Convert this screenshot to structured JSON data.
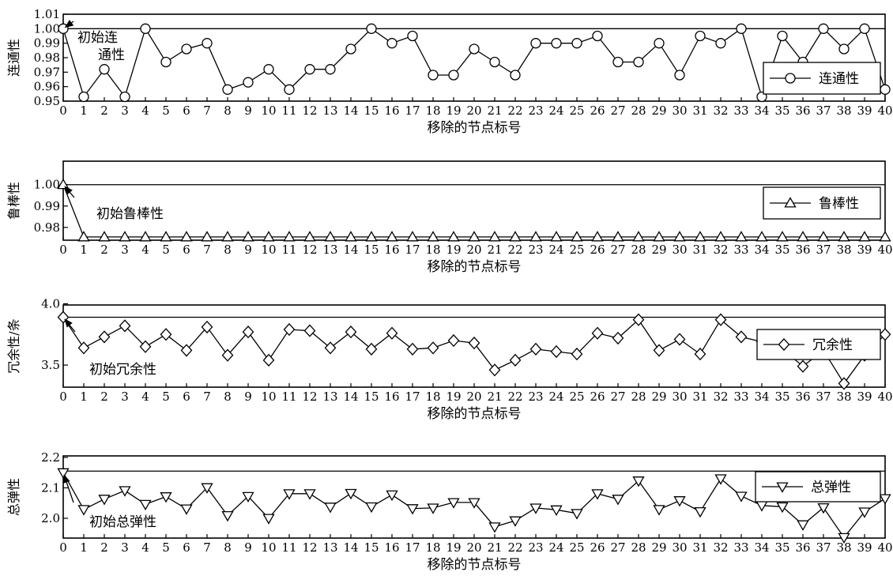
{
  "chart_data": [
    {
      "type": "line",
      "marker": "circle",
      "ylabel": "连通性",
      "xlabel": "移除的节点标号",
      "ylim": [
        0.95,
        1.01
      ],
      "yticks": [
        "0.95",
        "0.96",
        "0.97",
        "0.98",
        "0.99",
        "1.00",
        "1.01"
      ],
      "ytick_values": [
        0.95,
        0.96,
        0.97,
        0.98,
        0.99,
        1.0,
        1.01
      ],
      "reference_line": 1.0,
      "x": [
        0,
        1,
        2,
        3,
        4,
        5,
        6,
        7,
        8,
        9,
        10,
        11,
        12,
        13,
        14,
        15,
        16,
        17,
        18,
        19,
        20,
        21,
        22,
        23,
        24,
        25,
        26,
        27,
        28,
        29,
        30,
        31,
        32,
        33,
        34,
        35,
        36,
        37,
        38,
        39,
        40
      ],
      "xtick_labels": [
        "0",
        "1",
        "2",
        "3",
        "4",
        "5",
        "6",
        "7",
        "8",
        "9",
        "10",
        "11",
        "12",
        "13",
        "14",
        "15",
        "16",
        "17",
        "18",
        "19",
        "20",
        "21",
        "22",
        "23",
        "24",
        "25",
        "26",
        "27",
        "28",
        "29",
        "30",
        "31",
        "32",
        "33",
        "34",
        "35",
        "36",
        "37",
        "38",
        "39",
        "40"
      ],
      "series": [
        {
          "name": "连通性",
          "values": [
            1.0,
            0.953,
            0.972,
            0.953,
            1.0,
            0.977,
            0.986,
            0.99,
            0.958,
            0.963,
            0.972,
            0.958,
            0.972,
            0.972,
            0.986,
            1.0,
            0.99,
            0.995,
            0.968,
            0.968,
            0.986,
            0.977,
            0.968,
            0.99,
            0.99,
            0.99,
            0.995,
            0.977,
            0.977,
            0.99,
            0.968,
            0.995,
            0.99,
            1.0,
            0.953,
            0.995,
            0.977,
            1.0,
            0.986,
            1.0,
            0.958
          ]
        }
      ],
      "annotation": {
        "lines": [
          "初始连",
          "通性"
        ],
        "x": 0,
        "y": 1.0
      },
      "legend": "right"
    },
    {
      "type": "line",
      "marker": "triangle-up",
      "ylabel": "鲁棒性",
      "xlabel": "移除的节点标号",
      "ylim": [
        0.974,
        1.011
      ],
      "yticks": [
        "0.98",
        "0.99",
        "1.00"
      ],
      "ytick_values": [
        0.98,
        0.99,
        1.0
      ],
      "reference_line": 1.0,
      "x": [
        0,
        1,
        2,
        3,
        4,
        5,
        6,
        7,
        8,
        9,
        10,
        11,
        12,
        13,
        14,
        15,
        16,
        17,
        18,
        19,
        20,
        21,
        22,
        23,
        24,
        25,
        26,
        27,
        28,
        29,
        30,
        31,
        32,
        33,
        34,
        35,
        36,
        37,
        38,
        39,
        40
      ],
      "xtick_labels": [
        "0",
        "1",
        "2",
        "3",
        "4",
        "5",
        "6",
        "7",
        "8",
        "9",
        "10",
        "11",
        "12",
        "13",
        "14",
        "15",
        "16",
        "17",
        "18",
        "19",
        "20",
        "21",
        "22",
        "23",
        "24",
        "25",
        "26",
        "27",
        "28",
        "29",
        "30",
        "31",
        "32",
        "33",
        "34",
        "35",
        "36",
        "37",
        "38",
        "39",
        "40"
      ],
      "series": [
        {
          "name": "鲁棒性",
          "values": [
            1.0,
            0.9755,
            0.9755,
            0.9755,
            0.9755,
            0.9755,
            0.9755,
            0.9755,
            0.9755,
            0.9755,
            0.9755,
            0.9755,
            0.9755,
            0.9755,
            0.9755,
            0.9755,
            0.9755,
            0.9755,
            0.9755,
            0.9755,
            0.9755,
            0.9755,
            0.9755,
            0.9755,
            0.9755,
            0.9755,
            0.9755,
            0.9755,
            0.9755,
            0.9755,
            0.9755,
            0.9755,
            0.9755,
            0.9755,
            0.9755,
            0.9755,
            0.9755,
            0.9755,
            0.9755,
            0.9755,
            0.9755
          ]
        }
      ],
      "annotation": {
        "lines": [
          "初始鲁棒性"
        ],
        "x": 0,
        "y": 1.0
      },
      "legend": "right"
    },
    {
      "type": "line",
      "marker": "diamond",
      "ylabel": "冗余性/条",
      "xlabel": "移除的节点标号",
      "ylim": [
        3.32,
        3.99
      ],
      "yticks": [
        "3.5",
        "4.0"
      ],
      "ytick_values": [
        3.5,
        4.0
      ],
      "reference_line": 3.89,
      "x": [
        0,
        1,
        2,
        3,
        4,
        5,
        6,
        7,
        8,
        9,
        10,
        11,
        12,
        13,
        14,
        15,
        16,
        17,
        18,
        19,
        20,
        21,
        22,
        23,
        24,
        25,
        26,
        27,
        28,
        29,
        30,
        31,
        32,
        33,
        34,
        35,
        36,
        37,
        38,
        39,
        40
      ],
      "xtick_labels": [
        "0",
        "1",
        "2",
        "3",
        "4",
        "5",
        "6",
        "7",
        "8",
        "9",
        "10",
        "11",
        "12",
        "13",
        "14",
        "15",
        "16",
        "17",
        "18",
        "19",
        "20",
        "21",
        "22",
        "23",
        "24",
        "25",
        "26",
        "27",
        "28",
        "29",
        "30",
        "31",
        "32",
        "33",
        "34",
        "35",
        "36",
        "37",
        "38",
        "39",
        "40"
      ],
      "series": [
        {
          "name": "冗余性",
          "values": [
            3.89,
            3.64,
            3.73,
            3.82,
            3.65,
            3.75,
            3.62,
            3.81,
            3.58,
            3.77,
            3.54,
            3.79,
            3.78,
            3.64,
            3.77,
            3.63,
            3.76,
            3.63,
            3.64,
            3.7,
            3.68,
            3.46,
            3.54,
            3.63,
            3.61,
            3.59,
            3.76,
            3.72,
            3.87,
            3.62,
            3.71,
            3.59,
            3.87,
            3.73,
            3.69,
            3.63,
            3.49,
            3.62,
            3.35,
            3.58,
            3.75
          ]
        }
      ],
      "annotation": {
        "lines": [
          "初始冗余性"
        ],
        "x": 0,
        "y": 3.89
      },
      "legend": "right"
    },
    {
      "type": "line",
      "marker": "triangle-down",
      "ylabel": "总弹性",
      "xlabel": "移除的节点标号",
      "ylim": [
        1.935,
        2.205
      ],
      "yticks": [
        "2.0",
        "2.1",
        "2.2"
      ],
      "ytick_values": [
        2.0,
        2.1,
        2.2
      ],
      "reference_line": 2.155,
      "x": [
        0,
        1,
        2,
        3,
        4,
        5,
        6,
        7,
        8,
        9,
        10,
        11,
        12,
        13,
        14,
        15,
        16,
        17,
        18,
        19,
        20,
        21,
        22,
        23,
        24,
        25,
        26,
        27,
        28,
        29,
        30,
        31,
        32,
        33,
        34,
        35,
        36,
        37,
        38,
        39,
        40
      ],
      "xtick_labels": [
        "0",
        "1",
        "2",
        "3",
        "4",
        "5",
        "6",
        "7",
        "8",
        "9",
        "10",
        "11",
        "12",
        "13",
        "14",
        "15",
        "16",
        "17",
        "18",
        "19",
        "20",
        "21",
        "22",
        "23",
        "24",
        "25",
        "26",
        "27",
        "28",
        "29",
        "30",
        "31",
        "32",
        "33",
        "34",
        "35",
        "36",
        "37",
        "38",
        "39",
        "40"
      ],
      "series": [
        {
          "name": "总弹性",
          "values": [
            2.15,
            2.029,
            2.063,
            2.091,
            2.046,
            2.071,
            2.031,
            2.101,
            2.009,
            2.072,
            2.0,
            2.081,
            2.081,
            2.037,
            2.082,
            2.038,
            2.077,
            2.032,
            2.034,
            2.052,
            2.052,
            1.972,
            1.992,
            2.034,
            2.028,
            2.016,
            2.081,
            2.063,
            2.123,
            2.029,
            2.058,
            2.022,
            2.13,
            2.073,
            2.042,
            2.038,
            1.979,
            2.035,
            1.937,
            2.021,
            2.065
          ]
        }
      ],
      "annotation": {
        "lines": [
          "初始总弹性"
        ],
        "x": 0,
        "y": 2.15
      },
      "legend": "right"
    }
  ]
}
